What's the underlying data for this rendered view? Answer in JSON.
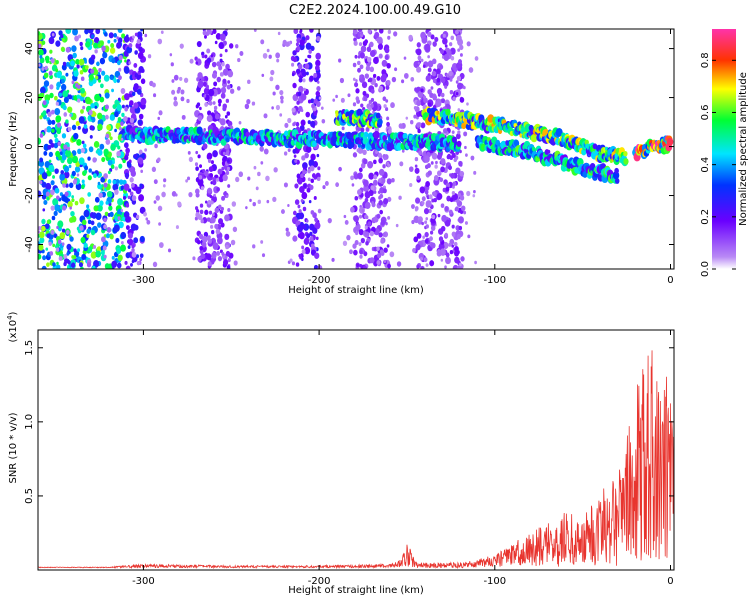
{
  "figure_title": "C2E2.2024.100.00.49.G10",
  "colors": {
    "snr_line": "#e8352f",
    "cmap": [
      "#ff00ff",
      "#ff0000",
      "#ffff00",
      "#00ff00",
      "#00ffff",
      "#0000ff",
      "#8000ff"
    ],
    "point_faint": "#d6b6f5"
  },
  "chart_data": [
    {
      "type": "heatmap",
      "title": "",
      "xlabel": "Height of straight line (km)",
      "ylabel": "Frequency (Hz)",
      "xlim": [
        -360,
        2
      ],
      "ylim": [
        -50,
        48
      ],
      "xticks": [
        -300,
        -200,
        -100,
        0
      ],
      "yticks": [
        -40,
        -20,
        0,
        20,
        40
      ],
      "colorbar": {
        "label": "Normalized spectral amplitude",
        "range": [
          0.0,
          0.92
        ],
        "ticks": [
          0.0,
          0.2,
          0.4,
          0.6,
          0.8
        ]
      },
      "traces": [
        {
          "x": [
            -310,
            -250,
            -200,
            -150,
            -120
          ],
          "freq": [
            5,
            4,
            3,
            2,
            1
          ],
          "amplitude": 0.45
        },
        {
          "x": [
            -190,
            -165
          ],
          "freq": [
            12,
            11
          ],
          "amplitude": 0.55
        },
        {
          "x": [
            -140,
            -100,
            -60,
            -40,
            -25
          ],
          "freq": [
            13,
            9,
            3,
            -3,
            -4
          ],
          "amplitude": 0.6
        },
        {
          "x": [
            -110,
            -80,
            -50,
            -30
          ],
          "freq": [
            2,
            -2,
            -9,
            -12
          ],
          "amplitude": 0.5
        },
        {
          "x": [
            -20,
            -10,
            0
          ],
          "freq": [
            -3,
            0,
            1
          ],
          "amplitude": 0.85
        }
      ]
    },
    {
      "type": "line",
      "title": "",
      "xlabel": "Height of straight line (km)",
      "ylabel": "SNR (10 * v/v)",
      "y_multiplier": "(x10",
      "y_multiplier_exp": "4",
      "y_multiplier_close": ")",
      "xlim": [
        -360,
        2
      ],
      "ylim": [
        0,
        1.62
      ],
      "xticks": [
        -300,
        -200,
        -100,
        0
      ],
      "yticks": [
        0.5,
        1.0,
        1.5
      ],
      "ytick_labels": [
        "0.5",
        "1.0",
        "1.5"
      ],
      "series": [
        {
          "envelope": {
            "x": [
              -360,
              -320,
              -300,
              -250,
              -200,
              -160,
              -153,
              -150,
              -145,
              -120,
              -100,
              -85,
              -70,
              -60,
              -50,
              -40,
              -30,
              -22,
              -18,
              -12,
              -6,
              0
            ],
            "y": [
              0.02,
              0.02,
              0.04,
              0.03,
              0.03,
              0.04,
              0.08,
              0.22,
              0.05,
              0.05,
              0.1,
              0.22,
              0.32,
              0.4,
              0.35,
              0.55,
              0.75,
              1.05,
              1.4,
              1.55,
              1.4,
              1.3
            ]
          }
        }
      ]
    }
  ]
}
